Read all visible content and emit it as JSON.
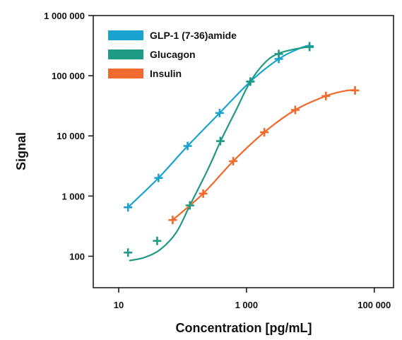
{
  "chart_data": {
    "type": "line",
    "title": "",
    "xlabel": "Concentration  [pg/mL]",
    "ylabel": "Signal",
    "x_scale": "log",
    "y_scale": "log",
    "xlim": [
      4,
      200000
    ],
    "ylim": [
      30,
      1000000
    ],
    "x_ticks": [
      {
        "value": 10,
        "label": "10"
      },
      {
        "value": 1000,
        "label": "1 000"
      },
      {
        "value": 100000,
        "label": "100 000"
      }
    ],
    "y_ticks": [
      {
        "value": 100,
        "label": "100"
      },
      {
        "value": 1000,
        "label": "1 000"
      },
      {
        "value": 10000,
        "label": "10 000"
      },
      {
        "value": 100000,
        "label": "100 000"
      },
      {
        "value": 1000000,
        "label": "1 000 000"
      }
    ],
    "grid": false,
    "legend_position": "top-left",
    "series": [
      {
        "name": "GLP-1  (7-36)amide",
        "color": "#1aa3cf",
        "points": [
          [
            14,
            650
          ],
          [
            42,
            2000
          ],
          [
            120,
            6800
          ],
          [
            380,
            24000
          ],
          [
            1150,
            80000
          ],
          [
            3200,
            190000
          ],
          [
            9700,
            310000
          ]
        ],
        "curve": [
          [
            14,
            650
          ],
          [
            42,
            2000
          ],
          [
            120,
            6800
          ],
          [
            380,
            24000
          ],
          [
            1150,
            80000
          ],
          [
            3200,
            190000
          ],
          [
            6500,
            280000
          ],
          [
            9700,
            320000
          ]
        ]
      },
      {
        "name": "Glucagon",
        "color": "#1e9a85",
        "points": [
          [
            14,
            115
          ],
          [
            40,
            180
          ],
          [
            130,
            700
          ],
          [
            390,
            8200
          ],
          [
            1150,
            80000
          ],
          [
            3200,
            230000
          ],
          [
            9700,
            300000
          ]
        ],
        "curve": [
          [
            15,
            85
          ],
          [
            25,
            95
          ],
          [
            45,
            130
          ],
          [
            80,
            250
          ],
          [
            130,
            700
          ],
          [
            250,
            2800
          ],
          [
            400,
            8500
          ],
          [
            700,
            28000
          ],
          [
            1150,
            80000
          ],
          [
            2000,
            170000
          ],
          [
            3200,
            235000
          ],
          [
            6000,
            280000
          ],
          [
            9700,
            300000
          ]
        ]
      },
      {
        "name": "Insulin",
        "color": "#ef6a2c",
        "points": [
          [
            70,
            400
          ],
          [
            210,
            1100
          ],
          [
            620,
            3800
          ],
          [
            1900,
            11500
          ],
          [
            5800,
            27000
          ],
          [
            17500,
            46000
          ],
          [
            50000,
            57000
          ]
        ],
        "curve": [
          [
            70,
            400
          ],
          [
            210,
            1100
          ],
          [
            620,
            3800
          ],
          [
            1900,
            11500
          ],
          [
            5800,
            27000
          ],
          [
            17500,
            46000
          ],
          [
            35000,
            56000
          ],
          [
            50000,
            58000
          ]
        ]
      }
    ]
  }
}
